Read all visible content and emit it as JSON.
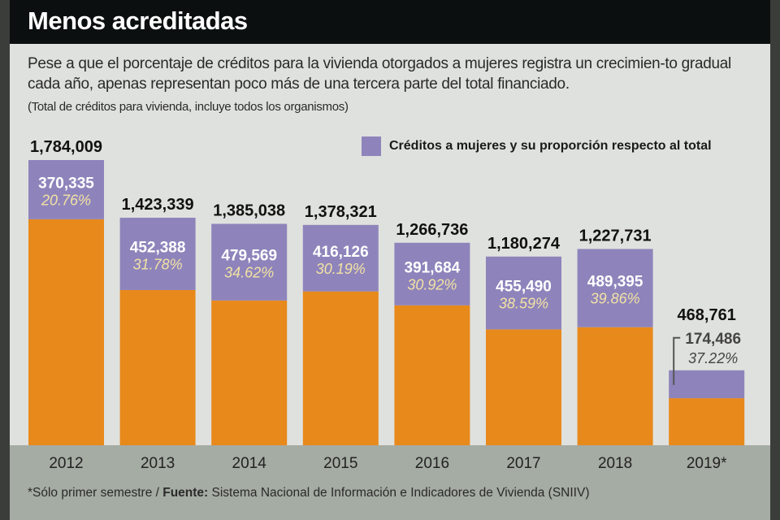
{
  "header": {
    "title": "Menos acreditadas",
    "subtitle": "Pese a que el porcentaje de créditos para la vivienda otorgados a mujeres registra un crecimien-to gradual cada año, apenas representan poco más de una tercera parte del total financiado.",
    "note": "(Total de créditos para vivienda, incluye todos los organismos)"
  },
  "footer": {
    "note": "*Sólo primer semestre / ",
    "source_label": "Fuente:",
    "source": " Sistema Nacional de Información e Indicadores de Vivienda (SNIIV)"
  },
  "colors": {
    "women": "#8e84bb",
    "rest": "#e8891c",
    "pct_text": "#f3e2a4"
  },
  "chart_data": {
    "type": "bar",
    "stacked": true,
    "title": "Menos acreditadas",
    "categories": [
      "2012",
      "2013",
      "2014",
      "2015",
      "2016",
      "2017",
      "2018",
      "2019*"
    ],
    "totals": [
      1784009,
      1423339,
      1385038,
      1378321,
      1266736,
      1180274,
      1227731,
      468761
    ],
    "total_labels": [
      "1,784,009",
      "1,423,339",
      "1,385,038",
      "1,378,321",
      "1,266,736",
      "1,180,274",
      "1,227,731",
      "468,761"
    ],
    "series": [
      {
        "name": "Créditos a mujeres y su proporción respecto al total",
        "values": [
          370335,
          452388,
          479569,
          416126,
          391684,
          455490,
          489395,
          174486
        ],
        "labels": [
          "370,335",
          "452,388",
          "479,569",
          "416,126",
          "391,684",
          "455,490",
          "489,395",
          "174,486"
        ],
        "percent_labels": [
          "20.76%",
          "31.78%",
          "34.62%",
          "30.19%",
          "30.92%",
          "38.59%",
          "39.86%",
          "37.22%"
        ]
      }
    ],
    "legend": "top-right",
    "grid": false
  }
}
